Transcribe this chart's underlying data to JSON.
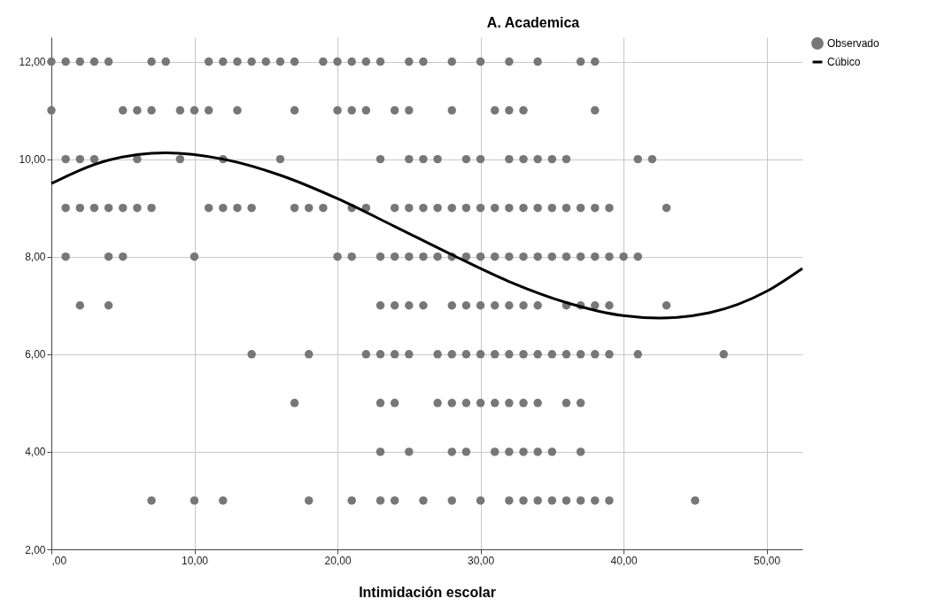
{
  "chart_data": {
    "type": "scatter",
    "title": "A. Academica",
    "xlabel": "Intimidación escolar",
    "xlim": [
      0,
      52.5
    ],
    "ylim": [
      2,
      12.5
    ],
    "xticks": [
      {
        "value": 0,
        "label": ",00"
      },
      {
        "value": 10,
        "label": "10,00"
      },
      {
        "value": 20,
        "label": "20,00"
      },
      {
        "value": 30,
        "label": "30,00"
      },
      {
        "value": 40,
        "label": "40,00"
      },
      {
        "value": 50,
        "label": "50,00"
      }
    ],
    "yticks": [
      {
        "value": 2,
        "label": "2,00"
      },
      {
        "value": 4,
        "label": "4,00"
      },
      {
        "value": 6,
        "label": "6,00"
      },
      {
        "value": 8,
        "label": "8,00"
      },
      {
        "value": 10,
        "label": "10,00"
      },
      {
        "value": 12,
        "label": "12,00"
      }
    ],
    "grid": true,
    "legend": "top right",
    "marker": "circle",
    "line_style": "solid",
    "series": [
      {
        "name": "Observado",
        "color": "#777777",
        "x": [
          0,
          1,
          2,
          3,
          4,
          7,
          8,
          11,
          12,
          13,
          14,
          15,
          16,
          17,
          19,
          20,
          21,
          22,
          23,
          25,
          26,
          28,
          30,
          32,
          34,
          37,
          38,
          0,
          5,
          6,
          7,
          9,
          10,
          11,
          13,
          17,
          20,
          21,
          22,
          24,
          25,
          28,
          31,
          32,
          33,
          38,
          1,
          2,
          3,
          6,
          9,
          12,
          16,
          23,
          25,
          26,
          27,
          29,
          30,
          32,
          33,
          34,
          35,
          36,
          41,
          42,
          1,
          2,
          3,
          4,
          5,
          6,
          7,
          11,
          12,
          13,
          14,
          17,
          18,
          19,
          21,
          22,
          24,
          25,
          26,
          27,
          28,
          29,
          30,
          31,
          32,
          33,
          34,
          35,
          36,
          37,
          38,
          39,
          43,
          1,
          4,
          5,
          10,
          20,
          21,
          23,
          24,
          25,
          26,
          27,
          28,
          29,
          30,
          31,
          32,
          33,
          34,
          35,
          36,
          37,
          38,
          39,
          40,
          41,
          2,
          4,
          23,
          24,
          25,
          26,
          28,
          29,
          30,
          31,
          32,
          33,
          34,
          36,
          37,
          38,
          39,
          43,
          14,
          18,
          22,
          23,
          24,
          25,
          27,
          28,
          29,
          30,
          31,
          32,
          33,
          34,
          35,
          36,
          37,
          38,
          39,
          41,
          47,
          17,
          23,
          24,
          27,
          28,
          29,
          30,
          31,
          32,
          33,
          34,
          36,
          37,
          23,
          25,
          28,
          29,
          31,
          32,
          33,
          34,
          35,
          37,
          7,
          10,
          12,
          18,
          21,
          23,
          24,
          26,
          28,
          30,
          32,
          33,
          34,
          35,
          36,
          37,
          38,
          39,
          45
        ],
        "values": [
          12,
          12,
          12,
          12,
          12,
          12,
          12,
          12,
          12,
          12,
          12,
          12,
          12,
          12,
          12,
          12,
          12,
          12,
          12,
          12,
          12,
          12,
          12,
          12,
          12,
          12,
          12,
          11,
          11,
          11,
          11,
          11,
          11,
          11,
          11,
          11,
          11,
          11,
          11,
          11,
          11,
          11,
          11,
          11,
          11,
          11,
          10,
          10,
          10,
          10,
          10,
          10,
          10,
          10,
          10,
          10,
          10,
          10,
          10,
          10,
          10,
          10,
          10,
          10,
          10,
          10,
          9,
          9,
          9,
          9,
          9,
          9,
          9,
          9,
          9,
          9,
          9,
          9,
          9,
          9,
          9,
          9,
          9,
          9,
          9,
          9,
          9,
          9,
          9,
          9,
          9,
          9,
          9,
          9,
          9,
          9,
          9,
          9,
          9,
          8,
          8,
          8,
          8,
          8,
          8,
          8,
          8,
          8,
          8,
          8,
          8,
          8,
          8,
          8,
          8,
          8,
          8,
          8,
          8,
          8,
          8,
          8,
          8,
          8,
          7,
          7,
          7,
          7,
          7,
          7,
          7,
          7,
          7,
          7,
          7,
          7,
          7,
          7,
          7,
          7,
          7,
          7,
          6,
          6,
          6,
          6,
          6,
          6,
          6,
          6,
          6,
          6,
          6,
          6,
          6,
          6,
          6,
          6,
          6,
          6,
          6,
          6,
          6,
          5,
          5,
          5,
          5,
          5,
          5,
          5,
          5,
          5,
          5,
          5,
          5,
          5,
          4,
          4,
          4,
          4,
          4,
          4,
          4,
          4,
          4,
          4,
          3,
          3,
          3,
          3,
          3,
          3,
          3,
          3,
          3,
          3,
          3,
          3,
          3,
          3,
          3,
          3,
          3,
          3,
          3
        ]
      },
      {
        "name": "Cúbico",
        "type": "line",
        "color": "#000000",
        "marker": "none",
        "x": [
          0,
          4,
          8,
          12,
          16,
          20,
          24,
          28,
          32,
          36,
          40,
          42.5,
          46,
          50,
          52.5
        ],
        "values": [
          9.5,
          9.98,
          10.13,
          10.0,
          9.67,
          9.19,
          8.62,
          8.04,
          7.49,
          7.06,
          6.79,
          6.74,
          6.85,
          7.29,
          7.76
        ]
      }
    ]
  }
}
